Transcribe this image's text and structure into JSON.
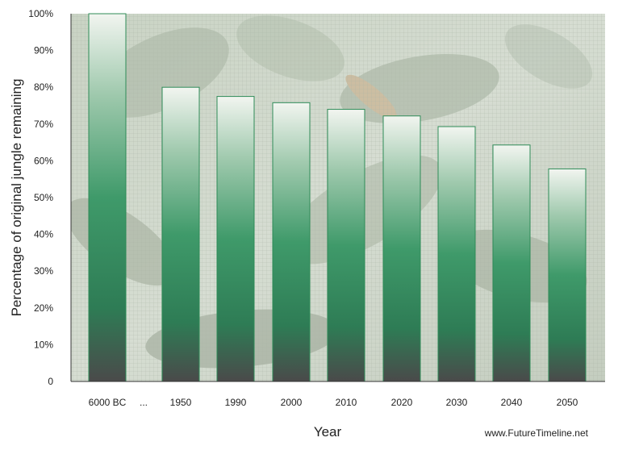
{
  "chart_data": {
    "type": "bar",
    "title": "",
    "xlabel": "Year",
    "ylabel": "Percentage of original jungle remaining",
    "ylim": [
      0,
      100
    ],
    "yticks": [
      "0",
      "10%",
      "20%",
      "30%",
      "40%",
      "50%",
      "60%",
      "70%",
      "80%",
      "90%",
      "100%"
    ],
    "categories": [
      "6000 BC",
      "1950",
      "1990",
      "2000",
      "2010",
      "2020",
      "2030",
      "2040",
      "2050"
    ],
    "values": [
      100,
      80,
      77.5,
      75.8,
      74,
      72.2,
      69.3,
      64.3,
      57.8
    ],
    "axis_break_label": "...",
    "grid": true,
    "bar_color": "#2e8b57",
    "background": "rainforest-photo"
  },
  "source": "www.FutureTimeline.net"
}
